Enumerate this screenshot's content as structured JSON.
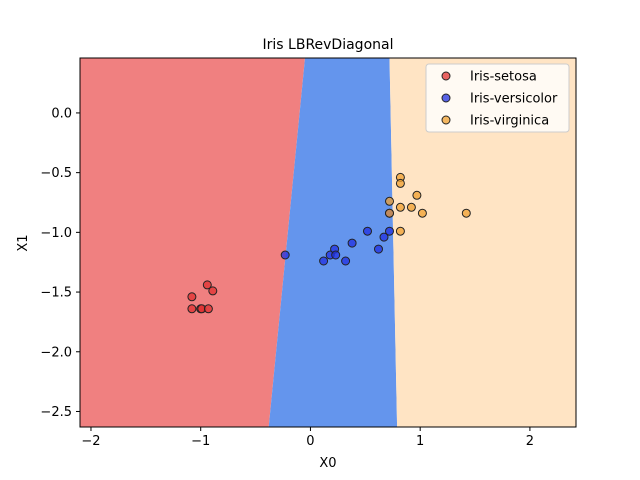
{
  "chart_data": {
    "type": "scatter",
    "title": "Iris LBRevDiagonal",
    "xlabel": "X0",
    "ylabel": "X1",
    "xlim": [
      -2.1,
      2.42
    ],
    "ylim": [
      -2.63,
      0.46
    ],
    "xticks": [
      -2,
      -1,
      0,
      1,
      2
    ],
    "xtick_labels": [
      "−2",
      "−1",
      "0",
      "1",
      "2"
    ],
    "yticks": [
      0.0,
      -0.5,
      -1.0,
      -1.5,
      -2.0,
      -2.5
    ],
    "ytick_labels": [
      "0.0",
      "−0.5",
      "−1.0",
      "−1.5",
      "−2.0",
      "−2.5"
    ],
    "legend_position": "top-right",
    "decision_regions": [
      {
        "class": "Iris-setosa",
        "color": "#f08080",
        "boundary_to_next": [
          [
            -0.05,
            0.46
          ],
          [
            -0.38,
            -2.63
          ]
        ]
      },
      {
        "class": "Iris-versicolor",
        "color": "#6495ed",
        "boundary_to_next": [
          [
            0.72,
            0.46
          ],
          [
            0.79,
            -2.63
          ]
        ]
      },
      {
        "class": "Iris-virginica",
        "color": "#ffe4c4"
      }
    ],
    "series": [
      {
        "name": "Iris-setosa",
        "color": "#e03030",
        "x": [
          -1.08,
          -1.08,
          -1.0,
          -0.99,
          -0.93,
          -0.94,
          -0.89
        ],
        "y": [
          -1.54,
          -1.64,
          -1.64,
          -1.64,
          -1.64,
          -1.44,
          -1.49
        ]
      },
      {
        "name": "Iris-versicolor",
        "color": "#2030e0",
        "x": [
          -0.23,
          0.12,
          0.18,
          0.22,
          0.23,
          0.32,
          0.38,
          0.52,
          0.62,
          0.67,
          0.72,
          0.72
        ],
        "y": [
          -1.19,
          -1.24,
          -1.19,
          -1.14,
          -1.19,
          -1.24,
          -1.09,
          -0.99,
          -1.14,
          -1.04,
          -0.99,
          -0.84
        ]
      },
      {
        "name": "Iris-virginica",
        "color": "#f0a030",
        "x": [
          0.72,
          0.72,
          0.82,
          0.82,
          0.82,
          0.82,
          0.92,
          0.97,
          1.02,
          1.42
        ],
        "y": [
          -0.74,
          -0.84,
          -0.54,
          -0.59,
          -0.79,
          -0.99,
          -0.79,
          -0.69,
          -0.84,
          -0.84
        ]
      }
    ]
  }
}
